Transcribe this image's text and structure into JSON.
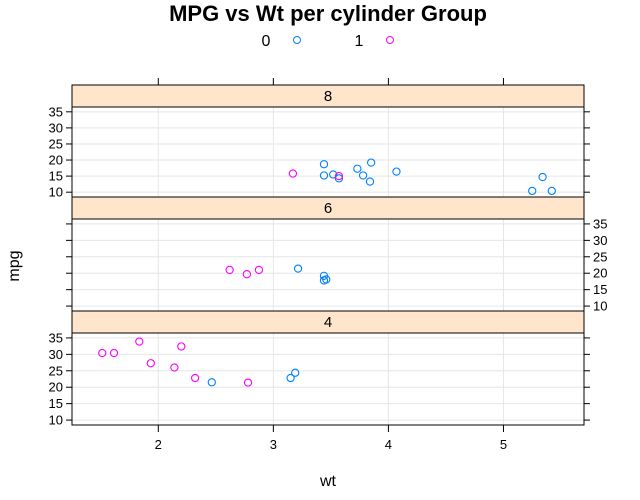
{
  "chart_data": {
    "type": "scatter",
    "title": "MPG vs Wt per cylinder Group",
    "xlabel": "wt",
    "ylabel": "mpg",
    "xlim": [
      1.25,
      5.7
    ],
    "ylim": [
      8.5,
      36.5
    ],
    "x_ticks": [
      2,
      3,
      4,
      5
    ],
    "y_ticks": [
      10,
      15,
      20,
      25,
      30,
      35
    ],
    "grid": true,
    "legend_position": "top",
    "legend": [
      {
        "label": "0",
        "color": "#0080ff"
      },
      {
        "label": "1",
        "color": "#ff00ff"
      }
    ],
    "panels": [
      {
        "strip": "8",
        "points": [
          {
            "x": 3.44,
            "y": 18.7,
            "g": 0
          },
          {
            "x": 3.57,
            "y": 14.3,
            "g": 0
          },
          {
            "x": 4.07,
            "y": 16.4,
            "g": 0
          },
          {
            "x": 3.73,
            "y": 17.3,
            "g": 0
          },
          {
            "x": 3.78,
            "y": 15.2,
            "g": 0
          },
          {
            "x": 5.25,
            "y": 10.4,
            "g": 0
          },
          {
            "x": 5.42,
            "y": 10.4,
            "g": 0
          },
          {
            "x": 5.34,
            "y": 14.7,
            "g": 0
          },
          {
            "x": 3.52,
            "y": 15.5,
            "g": 0
          },
          {
            "x": 3.44,
            "y": 15.2,
            "g": 0
          },
          {
            "x": 3.84,
            "y": 13.3,
            "g": 0
          },
          {
            "x": 3.85,
            "y": 19.2,
            "g": 0
          },
          {
            "x": 3.17,
            "y": 15.8,
            "g": 1
          },
          {
            "x": 3.57,
            "y": 15.0,
            "g": 1
          }
        ]
      },
      {
        "strip": "6",
        "points": [
          {
            "x": 3.215,
            "y": 21.4,
            "g": 0
          },
          {
            "x": 3.46,
            "y": 18.1,
            "g": 0
          },
          {
            "x": 3.44,
            "y": 19.2,
            "g": 0
          },
          {
            "x": 3.44,
            "y": 17.8,
            "g": 0
          },
          {
            "x": 2.62,
            "y": 21.0,
            "g": 1
          },
          {
            "x": 2.875,
            "y": 21.0,
            "g": 1
          },
          {
            "x": 2.77,
            "y": 19.7,
            "g": 1
          }
        ]
      },
      {
        "strip": "4",
        "points": [
          {
            "x": 3.19,
            "y": 24.4,
            "g": 0
          },
          {
            "x": 3.15,
            "y": 22.8,
            "g": 0
          },
          {
            "x": 2.465,
            "y": 21.5,
            "g": 0
          },
          {
            "x": 2.32,
            "y": 22.8,
            "g": 1
          },
          {
            "x": 2.2,
            "y": 32.4,
            "g": 1
          },
          {
            "x": 1.615,
            "y": 30.4,
            "g": 1
          },
          {
            "x": 1.835,
            "y": 33.9,
            "g": 1
          },
          {
            "x": 1.935,
            "y": 27.3,
            "g": 1
          },
          {
            "x": 2.14,
            "y": 26.0,
            "g": 1
          },
          {
            "x": 1.513,
            "y": 30.4,
            "g": 1
          },
          {
            "x": 2.78,
            "y": 21.4,
            "g": 1
          }
        ]
      }
    ]
  }
}
